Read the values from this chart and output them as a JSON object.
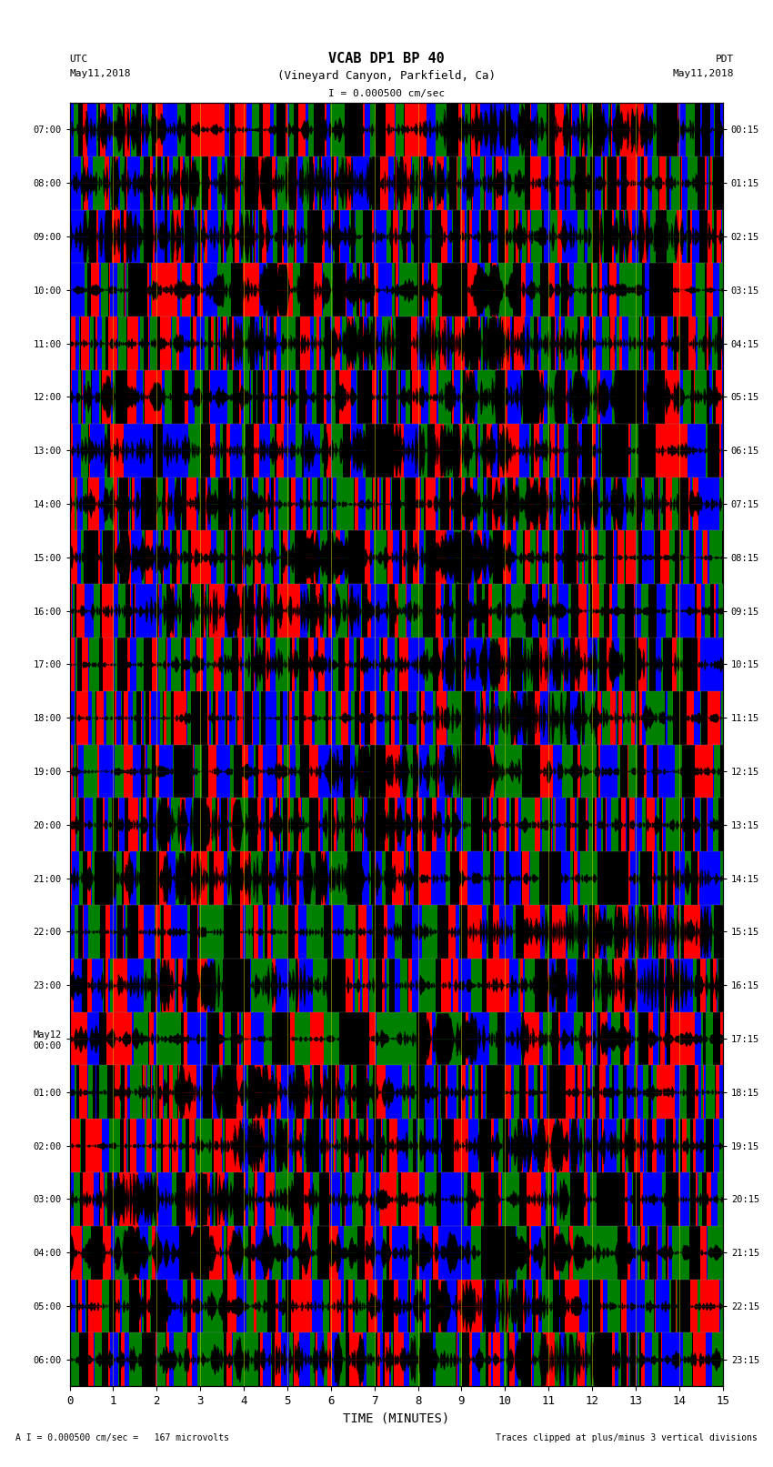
{
  "title_line1": "VCAB DP1 BP 40",
  "title_line2": "(Vineyard Canyon, Parkfield, Ca)",
  "scale_text": "I = 0.000500 cm/sec",
  "left_label_top": "UTC",
  "left_label_date": "May11,2018",
  "right_label_top": "PDT",
  "right_label_date": "May11,2018",
  "bottom_label": "TIME (MINUTES)",
  "bottom_note": "A I = 0.000500 cm/sec =   167 microvolts",
  "bottom_note2": "Traces clipped at plus/minus 3 vertical divisions",
  "utc_times": [
    "07:00",
    "08:00",
    "09:00",
    "10:00",
    "11:00",
    "12:00",
    "13:00",
    "14:00",
    "15:00",
    "16:00",
    "17:00",
    "18:00",
    "19:00",
    "20:00",
    "21:00",
    "22:00",
    "23:00",
    "May12\n00:00",
    "01:00",
    "02:00",
    "03:00",
    "04:00",
    "05:00",
    "06:00"
  ],
  "pdt_times": [
    "00:15",
    "01:15",
    "02:15",
    "03:15",
    "04:15",
    "05:15",
    "06:15",
    "07:15",
    "08:15",
    "09:15",
    "10:15",
    "11:15",
    "12:15",
    "13:15",
    "14:15",
    "15:15",
    "16:15",
    "17:15",
    "18:15",
    "19:15",
    "20:15",
    "21:15",
    "22:15",
    "23:15"
  ],
  "n_rows": 24,
  "bg_color": "#ffffff",
  "minutes_ticks": [
    0,
    1,
    2,
    3,
    4,
    5,
    6,
    7,
    8,
    9,
    10,
    11,
    12,
    13,
    14,
    15
  ],
  "fig_width": 8.5,
  "fig_height": 16.13,
  "dpi": 100,
  "font_family": "monospace",
  "total_minutes": 15,
  "samples_per_row": 9000,
  "row_colors": [
    "#ff0000",
    "#0000ff",
    "#008000",
    "#000000"
  ]
}
